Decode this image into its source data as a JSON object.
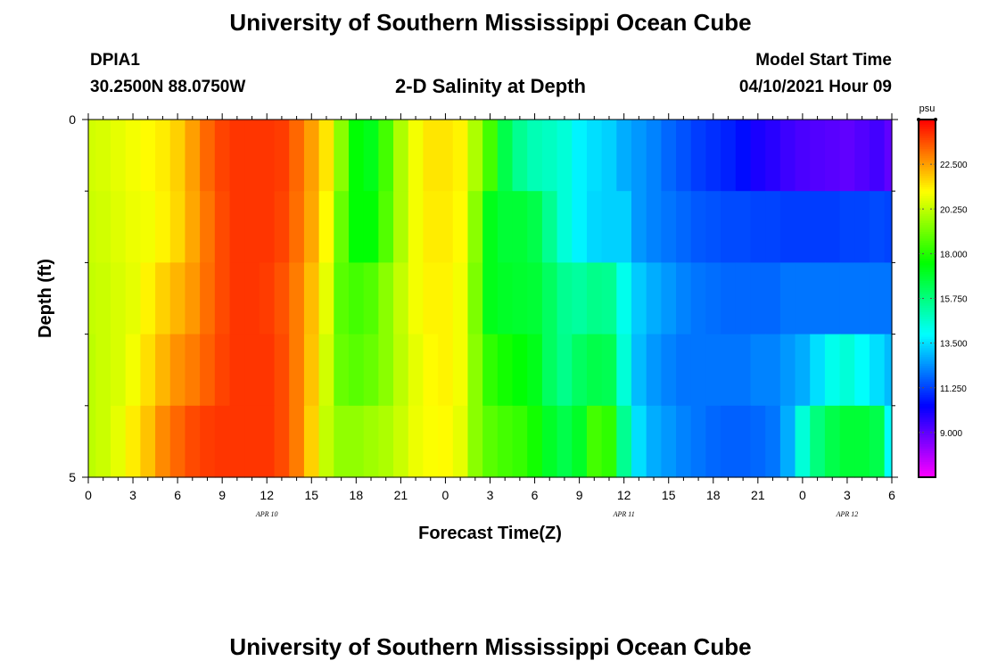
{
  "header": {
    "title": "University of Southern Mississippi Ocean Cube",
    "station": "DPIA1",
    "coords": "30.2500N  88.0750W",
    "subtitle": "2-D Salinity at Depth",
    "model_label": "Model Start Time",
    "model_time": "04/10/2021 Hour 09"
  },
  "footer": {
    "title": "University of Southern Mississippi Ocean Cube"
  },
  "chart_data": {
    "type": "heatmap",
    "xlabel": "Forecast Time(Z)",
    "ylabel": "Depth (ft)",
    "x_tick_labels": [
      "0",
      "3",
      "6",
      "9",
      "12",
      "15",
      "18",
      "21",
      "0",
      "3",
      "6",
      "9",
      "12",
      "15",
      "18",
      "21",
      "0",
      "3",
      "6"
    ],
    "date_labels": [
      {
        "label": "APR  10",
        "hour": 12
      },
      {
        "label": "APR  11",
        "hour": 36
      },
      {
        "label": "APR  12",
        "hour": 51
      }
    ],
    "y_tick_labels": [
      "0",
      "5"
    ],
    "ylim": [
      0,
      5
    ],
    "xlim_hours": [
      0,
      54
    ],
    "colorbar": {
      "unit": "psu",
      "ticks": [
        "22.500",
        "20.250",
        "18.000",
        "15.750",
        "13.500",
        "11.250",
        "9.000"
      ],
      "range": [
        6.75,
        24.75
      ]
    },
    "depth_layers_ft": [
      0,
      1,
      2,
      3,
      4,
      5
    ],
    "time_hours": [
      0,
      1,
      2,
      3,
      4,
      5,
      6,
      7,
      8,
      9,
      10,
      11,
      12,
      13,
      14,
      15,
      16,
      17,
      18,
      19,
      20,
      21,
      22,
      23,
      24,
      25,
      26,
      27,
      28,
      29,
      30,
      31,
      32,
      33,
      34,
      35,
      36,
      37,
      38,
      39,
      40,
      41,
      42,
      43,
      44,
      45,
      46,
      47,
      48,
      49,
      50,
      51,
      52,
      53,
      54
    ],
    "salinity_psu": [
      [
        20.5,
        20.6,
        20.8,
        21.0,
        21.2,
        21.4,
        21.8,
        22.5,
        23.3,
        23.8,
        24.0,
        24.0,
        24.0,
        23.9,
        23.3,
        22.5,
        21.5,
        19.5,
        17.5,
        17.2,
        18.5,
        20.0,
        21.0,
        21.5,
        21.5,
        21.3,
        20.0,
        18.5,
        16.5,
        15.5,
        15.0,
        14.8,
        14.5,
        13.8,
        13.5,
        13.3,
        12.8,
        12.5,
        12.2,
        11.8,
        11.5,
        11.2,
        11.0,
        10.8,
        10.5,
        10.0,
        9.8,
        9.5,
        9.3,
        9.2,
        9.1,
        9.0,
        9.2,
        9.4,
        9.0
      ],
      [
        20.4,
        20.5,
        20.7,
        20.9,
        21.0,
        21.3,
        21.7,
        22.4,
        23.1,
        23.7,
        24.0,
        24.0,
        24.0,
        23.8,
        23.2,
        22.4,
        21.2,
        19.0,
        17.5,
        17.5,
        18.7,
        20.0,
        21.0,
        21.4,
        21.4,
        21.2,
        19.5,
        17.2,
        16.8,
        16.8,
        16.5,
        15.5,
        14.5,
        13.8,
        13.4,
        13.3,
        13.3,
        12.5,
        12.2,
        12.0,
        11.8,
        11.6,
        11.5,
        11.4,
        11.4,
        11.3,
        11.3,
        11.2,
        11.2,
        11.2,
        11.2,
        11.3,
        11.3,
        11.4,
        11.3
      ],
      [
        20.3,
        20.4,
        20.6,
        20.8,
        21.3,
        21.8,
        22.2,
        22.6,
        23.2,
        23.7,
        24.0,
        24.0,
        23.9,
        23.6,
        23.0,
        22.1,
        20.8,
        18.8,
        18.5,
        18.7,
        19.5,
        20.3,
        21.0,
        21.3,
        21.3,
        21.0,
        19.3,
        17.2,
        17.0,
        16.9,
        16.8,
        16.2,
        15.5,
        15.3,
        15.6,
        15.5,
        14.2,
        13.2,
        12.8,
        12.5,
        12.2,
        12.0,
        11.9,
        11.8,
        11.8,
        11.8,
        11.8,
        12.0,
        12.0,
        12.0,
        12.0,
        12.0,
        12.0,
        12.0,
        12.0
      ],
      [
        20.2,
        20.4,
        20.6,
        21.0,
        21.6,
        22.2,
        22.7,
        23.0,
        23.4,
        23.8,
        24.0,
        24.0,
        24.0,
        23.7,
        23.0,
        22.0,
        20.5,
        19.0,
        18.8,
        19.0,
        19.5,
        20.2,
        20.8,
        21.2,
        21.3,
        21.0,
        19.5,
        18.2,
        17.8,
        17.5,
        17.2,
        16.2,
        15.6,
        16.2,
        16.5,
        16.4,
        14.5,
        13.0,
        12.5,
        12.2,
        12.0,
        12.0,
        12.0,
        12.0,
        12.0,
        12.2,
        12.2,
        12.5,
        12.8,
        13.5,
        14.2,
        14.5,
        14.0,
        13.5,
        13.0
      ],
      [
        20.2,
        20.4,
        20.8,
        21.4,
        22.0,
        22.8,
        23.3,
        23.7,
        23.9,
        24.0,
        24.0,
        24.0,
        24.0,
        23.7,
        23.0,
        21.8,
        20.3,
        19.6,
        19.6,
        19.8,
        20.0,
        20.4,
        20.9,
        21.1,
        21.2,
        20.8,
        19.5,
        18.8,
        18.5,
        18.3,
        17.8,
        17.0,
        16.5,
        17.0,
        18.5,
        18.2,
        15.5,
        13.5,
        12.8,
        12.5,
        12.2,
        12.0,
        11.8,
        11.7,
        11.7,
        11.8,
        12.0,
        12.8,
        14.5,
        15.8,
        16.5,
        16.8,
        16.8,
        16.5,
        14.0
      ],
      [
        20.1,
        20.5,
        21.0,
        21.8,
        22.6,
        23.4,
        23.9,
        24.3,
        24.3,
        24.1,
        24.0,
        24.0,
        24.0,
        23.7,
        22.8,
        21.5,
        20.5,
        20.1,
        20.2,
        20.3,
        20.5,
        20.6,
        20.9,
        21.0,
        21.0,
        20.5,
        19.5,
        19.0,
        18.8,
        18.7,
        18.5,
        18.2,
        17.8,
        17.2,
        18.3,
        19.0,
        17.0,
        15.0,
        13.8,
        13.2,
        12.8,
        12.6,
        12.5,
        12.5,
        12.5,
        12.5,
        13.2,
        14.2,
        15.5,
        16.8,
        17.2,
        17.4,
        17.2,
        16.8,
        14.5
      ]
    ]
  }
}
